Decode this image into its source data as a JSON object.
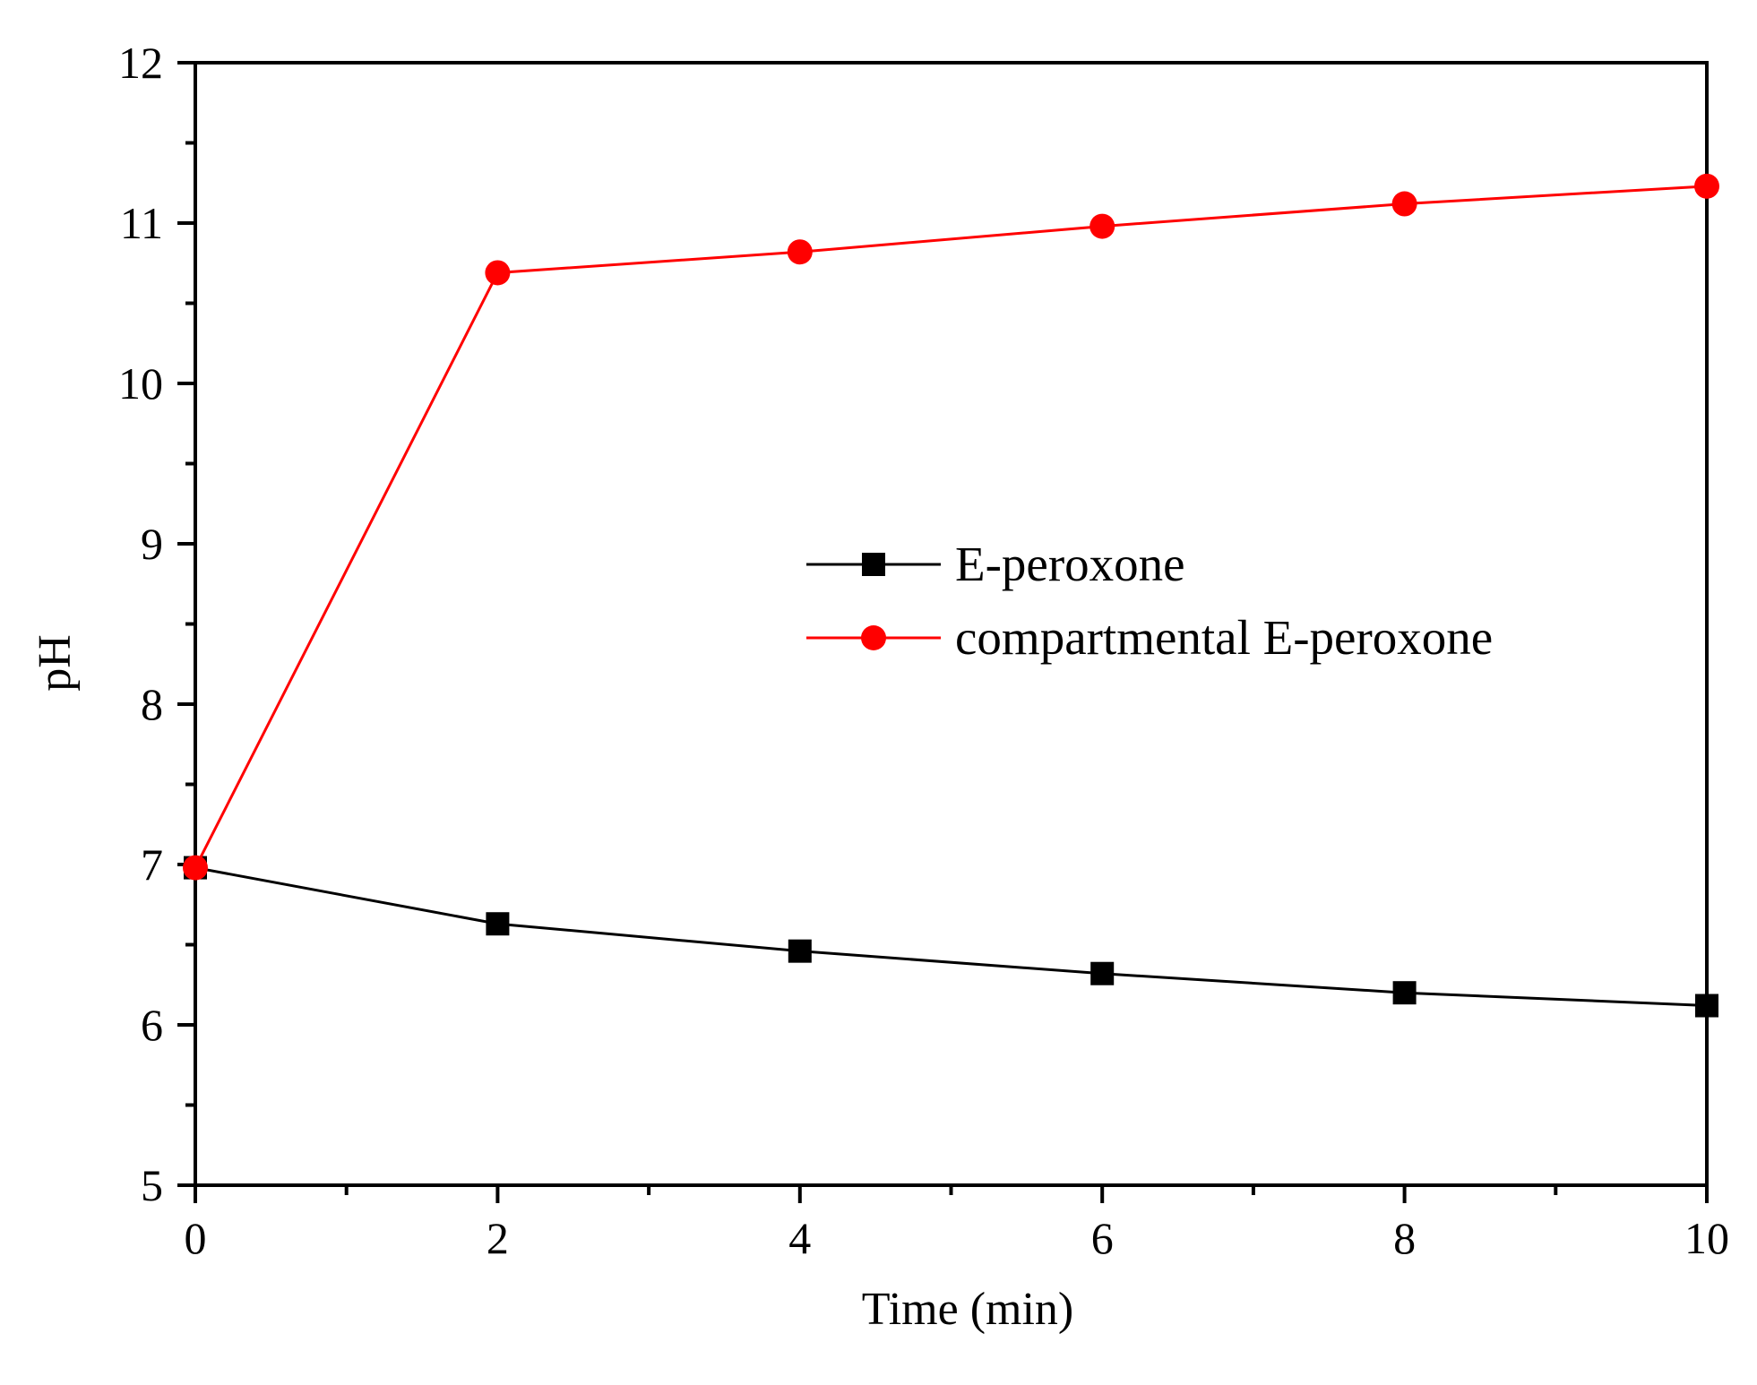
{
  "chart_data": {
    "type": "line",
    "title": "",
    "xlabel": "Time (min)",
    "ylabel": "pH",
    "xlim": [
      0,
      10
    ],
    "ylim": [
      5,
      12
    ],
    "x_ticks": [
      0,
      2,
      4,
      6,
      8,
      10
    ],
    "y_ticks": [
      5,
      6,
      7,
      8,
      9,
      10,
      11,
      12
    ],
    "x_tick_labels": [
      "0",
      "2",
      "4",
      "6",
      "8",
      "10"
    ],
    "y_tick_labels": [
      "5",
      "6",
      "7",
      "8",
      "9",
      "10",
      "11",
      "12"
    ],
    "grid": false,
    "legend_position": "center-right",
    "series": [
      {
        "name": "E-peroxone",
        "color": "#000000",
        "marker": "square",
        "x": [
          0,
          2,
          4,
          6,
          8,
          10
        ],
        "values": [
          6.98,
          6.63,
          6.46,
          6.32,
          6.2,
          6.12
        ]
      },
      {
        "name": "compartmental E-peroxone",
        "color": "#ff0000",
        "marker": "circle",
        "x": [
          0,
          2,
          4,
          6,
          8,
          10
        ],
        "values": [
          6.98,
          10.69,
          10.82,
          10.98,
          11.12,
          11.23
        ]
      }
    ]
  }
}
